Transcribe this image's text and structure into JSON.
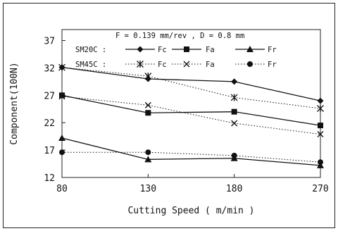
{
  "chart_data": {
    "type": "line",
    "title": "",
    "annotation": "F = 0.139 mm/rev , D = 0.8 mm",
    "xlabel": "Cutting Speed ( m/min )",
    "ylabel": "Component(100N)",
    "categories": [
      "80",
      "130",
      "180",
      "270"
    ],
    "yticks": [
      12,
      17,
      22,
      27,
      32,
      37
    ],
    "ylim": [
      12,
      39
    ],
    "grid": false,
    "legend": {
      "placement": "top-right",
      "groups": [
        {
          "label": "SM20C :",
          "entries": [
            "Fc",
            "Fa",
            "Fr"
          ]
        },
        {
          "label": "SM45C :",
          "entries": [
            "Fc",
            "Fa",
            "Fr"
          ]
        }
      ]
    },
    "series": [
      {
        "group": "SM20C",
        "name": "Fc",
        "marker": "diamond",
        "line": "solid",
        "values": [
          32.1,
          30.0,
          29.5,
          26.0
        ]
      },
      {
        "group": "SM20C",
        "name": "Fa",
        "marker": "square",
        "line": "solid",
        "values": [
          27.0,
          23.8,
          24.0,
          21.5
        ]
      },
      {
        "group": "SM20C",
        "name": "Fr",
        "marker": "triangle",
        "line": "solid",
        "values": [
          19.2,
          15.3,
          15.5,
          14.2
        ]
      },
      {
        "group": "SM45C",
        "name": "Fc",
        "marker": "asterisk",
        "line": "dotted",
        "values": [
          32.1,
          30.5,
          26.6,
          24.6
        ]
      },
      {
        "group": "SM45C",
        "name": "Fa",
        "marker": "x",
        "line": "dotted",
        "values": [
          26.8,
          25.2,
          21.9,
          19.9
        ]
      },
      {
        "group": "SM45C",
        "name": "Fr",
        "marker": "circle",
        "line": "dotted",
        "values": [
          16.6,
          16.6,
          16.0,
          14.8
        ]
      }
    ]
  }
}
